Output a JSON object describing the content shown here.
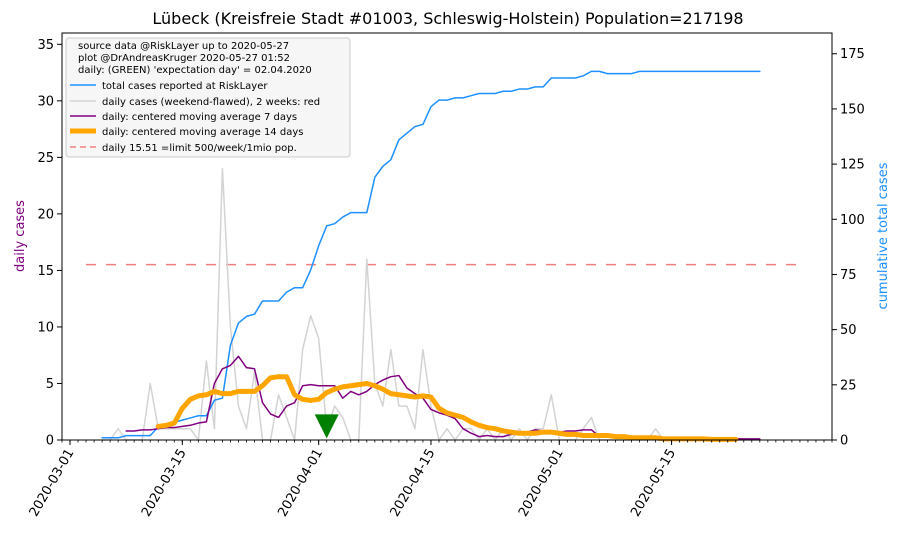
{
  "chart_data": {
    "type": "line",
    "title": "Lübeck (Kreisfreie Stadt #01003, Schleswig-Holstein) Population=217198",
    "ylabel_left": "daily cases",
    "ylabel_right": "cumulative total cases",
    "ylabel_left_color": "#800080",
    "ylabel_right_color": "#1E90FF",
    "ylim_left": [
      0,
      36
    ],
    "ylim_right": [
      0,
      184.4
    ],
    "yticks_left": [
      "0",
      "5",
      "10",
      "15",
      "20",
      "25",
      "30",
      "35"
    ],
    "yticks_right": [
      "0",
      "25",
      "50",
      "75",
      "100",
      "125",
      "150",
      "175"
    ],
    "xlim": [
      "2020-02-29",
      "2020-06-04"
    ],
    "xticks": [
      "2020-03-01",
      "2020-03-15",
      "2020-04-01",
      "2020-04-15",
      "2020-05-01",
      "2020-05-15"
    ],
    "legend_position": "top-left",
    "legend_header": [
      "source data @RiskLayer up to 2020-05-27",
      "plot @DrAndreasKruger 2020-05-27 01:52",
      "daily: (GREEN) 'expectation day' = 02.04.2020"
    ],
    "legend": [
      {
        "label": "total cases reported at RiskLayer",
        "color": "#1E90FF",
        "style": "line"
      },
      {
        "label": "daily cases (weekend-flawed), 2 weeks: red",
        "color": "#D3D3D3",
        "style": "line"
      },
      {
        "label": "daily: centered moving average 7 days",
        "color": "#800080",
        "style": "line"
      },
      {
        "label": "daily: centered moving average 14 days",
        "color": "#FFA500",
        "style": "thick"
      },
      {
        "label": "daily 15.51 =limit 500/week/1mio pop.",
        "color": "#F08080",
        "style": "dashed"
      }
    ],
    "limit_line": 15.51,
    "expectation_marker": {
      "date": "2020-04-02",
      "value": 1.2,
      "color": "#008000"
    },
    "series": [
      {
        "name": "total cases reported at RiskLayer",
        "axis": "right",
        "color": "#1E90FF",
        "x": [
          "2020-03-05",
          "2020-03-06",
          "2020-03-07",
          "2020-03-08",
          "2020-03-09",
          "2020-03-10",
          "2020-03-11",
          "2020-03-12",
          "2020-03-13",
          "2020-03-14",
          "2020-03-15",
          "2020-03-16",
          "2020-03-17",
          "2020-03-18",
          "2020-03-19",
          "2020-03-20",
          "2020-03-21",
          "2020-03-22",
          "2020-03-23",
          "2020-03-24",
          "2020-03-25",
          "2020-03-26",
          "2020-03-27",
          "2020-03-28",
          "2020-03-29",
          "2020-03-30",
          "2020-03-31",
          "2020-04-01",
          "2020-04-02",
          "2020-04-03",
          "2020-04-04",
          "2020-04-05",
          "2020-04-06",
          "2020-04-07",
          "2020-04-08",
          "2020-04-09",
          "2020-04-10",
          "2020-04-11",
          "2020-04-12",
          "2020-04-13",
          "2020-04-14",
          "2020-04-15",
          "2020-04-16",
          "2020-04-17",
          "2020-04-18",
          "2020-04-19",
          "2020-04-20",
          "2020-04-21",
          "2020-04-22",
          "2020-04-23",
          "2020-04-24",
          "2020-04-25",
          "2020-04-26",
          "2020-04-27",
          "2020-04-28",
          "2020-04-29",
          "2020-04-30",
          "2020-05-01",
          "2020-05-02",
          "2020-05-03",
          "2020-05-04",
          "2020-05-05",
          "2020-05-06",
          "2020-05-07",
          "2020-05-08",
          "2020-05-09",
          "2020-05-10",
          "2020-05-11",
          "2020-05-12",
          "2020-05-13",
          "2020-05-14",
          "2020-05-15",
          "2020-05-16",
          "2020-05-17",
          "2020-05-18",
          "2020-05-19",
          "2020-05-20",
          "2020-05-21",
          "2020-05-22",
          "2020-05-23",
          "2020-05-24",
          "2020-05-25",
          "2020-05-26"
        ],
        "values": [
          1,
          1,
          1,
          2,
          2,
          2,
          2,
          6,
          7,
          8,
          9,
          10,
          11,
          11,
          18,
          19,
          43,
          53,
          56,
          57,
          63,
          63,
          63,
          67,
          69,
          69,
          77,
          88,
          97,
          98,
          101,
          103,
          103,
          103,
          119,
          124,
          127,
          136,
          139,
          142,
          143,
          151,
          154,
          154,
          155,
          155,
          156,
          157,
          157,
          157,
          158,
          158,
          159,
          159,
          160,
          160,
          164,
          164,
          164,
          164,
          165,
          167,
          167,
          166,
          166,
          166,
          166,
          167,
          167,
          167,
          167,
          167,
          167,
          167,
          167,
          167,
          167,
          167,
          167,
          167,
          167,
          167,
          167
        ]
      },
      {
        "name": "daily cases (weekend-flawed), 2 weeks: red",
        "axis": "left",
        "color": "#D3D3D3",
        "x": [
          "2020-03-05",
          "2020-03-06",
          "2020-03-07",
          "2020-03-08",
          "2020-03-09",
          "2020-03-10",
          "2020-03-11",
          "2020-03-12",
          "2020-03-13",
          "2020-03-14",
          "2020-03-15",
          "2020-03-16",
          "2020-03-17",
          "2020-03-18",
          "2020-03-19",
          "2020-03-20",
          "2020-03-21",
          "2020-03-22",
          "2020-03-23",
          "2020-03-24",
          "2020-03-25",
          "2020-03-26",
          "2020-03-27",
          "2020-03-28",
          "2020-03-29",
          "2020-03-30",
          "2020-03-31",
          "2020-04-01",
          "2020-04-02",
          "2020-04-03",
          "2020-04-04",
          "2020-04-05",
          "2020-04-06",
          "2020-04-07",
          "2020-04-08",
          "2020-04-09",
          "2020-04-10",
          "2020-04-11",
          "2020-04-12",
          "2020-04-13",
          "2020-04-14",
          "2020-04-15",
          "2020-04-16",
          "2020-04-17",
          "2020-04-18",
          "2020-04-19",
          "2020-04-20",
          "2020-04-21",
          "2020-04-22",
          "2020-04-23",
          "2020-04-24",
          "2020-04-25",
          "2020-04-26",
          "2020-04-27",
          "2020-04-28",
          "2020-04-29",
          "2020-04-30",
          "2020-05-01",
          "2020-05-02",
          "2020-05-03",
          "2020-05-04",
          "2020-05-05",
          "2020-05-06",
          "2020-05-07",
          "2020-05-08",
          "2020-05-09",
          "2020-05-10",
          "2020-05-11",
          "2020-05-12",
          "2020-05-13",
          "2020-05-14",
          "2020-05-15",
          "2020-05-16",
          "2020-05-17",
          "2020-05-18",
          "2020-05-19",
          "2020-05-20",
          "2020-05-21",
          "2020-05-22",
          "2020-05-23",
          "2020-05-24",
          "2020-05-25",
          "2020-05-26"
        ],
        "values": [
          0,
          0,
          1,
          0,
          0,
          0,
          5,
          1,
          1,
          1,
          1,
          1,
          0,
          7,
          1,
          24,
          10,
          3,
          1,
          6,
          0,
          0,
          4,
          2,
          0,
          8,
          11,
          9,
          1,
          3,
          2,
          0,
          0,
          16,
          5,
          3,
          8,
          3,
          3,
          1,
          8,
          3,
          0,
          1,
          0,
          1,
          1,
          0,
          1,
          0,
          1,
          0,
          1,
          0,
          1,
          1,
          4,
          0,
          0,
          0,
          1,
          2,
          0,
          0,
          0,
          0,
          0,
          0,
          0,
          1,
          0,
          0,
          0,
          0,
          0,
          0,
          0,
          0,
          0,
          0,
          0,
          0,
          0
        ]
      },
      {
        "name": "daily: centered moving average 7 days",
        "axis": "left",
        "color": "#800080",
        "x": [
          "2020-03-08",
          "2020-03-09",
          "2020-03-10",
          "2020-03-11",
          "2020-03-12",
          "2020-03-13",
          "2020-03-14",
          "2020-03-15",
          "2020-03-16",
          "2020-03-17",
          "2020-03-18",
          "2020-03-19",
          "2020-03-20",
          "2020-03-21",
          "2020-03-22",
          "2020-03-23",
          "2020-03-24",
          "2020-03-25",
          "2020-03-26",
          "2020-03-27",
          "2020-03-28",
          "2020-03-29",
          "2020-03-30",
          "2020-03-31",
          "2020-04-01",
          "2020-04-02",
          "2020-04-03",
          "2020-04-04",
          "2020-04-05",
          "2020-04-06",
          "2020-04-07",
          "2020-04-08",
          "2020-04-09",
          "2020-04-10",
          "2020-04-11",
          "2020-04-12",
          "2020-04-13",
          "2020-04-14",
          "2020-04-15",
          "2020-04-16",
          "2020-04-17",
          "2020-04-18",
          "2020-04-19",
          "2020-04-20",
          "2020-04-21",
          "2020-04-22",
          "2020-04-23",
          "2020-04-24",
          "2020-04-25",
          "2020-04-26",
          "2020-04-27",
          "2020-04-28",
          "2020-04-29",
          "2020-04-30",
          "2020-05-01",
          "2020-05-02",
          "2020-05-03",
          "2020-05-04",
          "2020-05-05",
          "2020-05-06",
          "2020-05-07",
          "2020-05-08",
          "2020-05-09",
          "2020-05-10",
          "2020-05-11",
          "2020-05-12",
          "2020-05-13",
          "2020-05-14",
          "2020-05-15",
          "2020-05-16",
          "2020-05-17",
          "2020-05-18",
          "2020-05-19",
          "2020-05-20",
          "2020-05-21",
          "2020-05-22",
          "2020-05-23",
          "2020-05-24",
          "2020-05-25",
          "2020-05-26"
        ],
        "values": [
          0.8,
          0.8,
          0.9,
          0.9,
          1.0,
          1.1,
          1.1,
          1.2,
          1.3,
          1.5,
          1.6,
          5.0,
          6.3,
          6.6,
          7.4,
          6.4,
          6.3,
          3.3,
          2.3,
          2.0,
          3.0,
          3.3,
          4.8,
          4.9,
          4.8,
          4.8,
          4.8,
          3.7,
          4.3,
          4.0,
          4.3,
          4.9,
          5.3,
          5.6,
          5.7,
          4.6,
          4.1,
          3.7,
          2.7,
          2.4,
          2.2,
          1.9,
          1.0,
          0.6,
          0.3,
          0.4,
          0.3,
          0.3,
          0.5,
          0.5,
          0.7,
          0.9,
          0.8,
          0.8,
          0.7,
          0.8,
          0.8,
          0.9,
          0.9,
          0.3,
          0.3,
          0.3,
          0.3,
          0.2,
          0.2,
          0.2,
          0.1,
          0.1,
          0.1,
          0.1,
          0.1,
          0.1,
          0.1,
          0.1,
          0.1,
          0.1,
          0.1,
          0.1,
          0.1,
          0.1
        ]
      },
      {
        "name": "daily: centered moving average 14 days",
        "axis": "left",
        "color": "#FFA500",
        "x": [
          "2020-03-12",
          "2020-03-13",
          "2020-03-14",
          "2020-03-15",
          "2020-03-16",
          "2020-03-17",
          "2020-03-18",
          "2020-03-19",
          "2020-03-20",
          "2020-03-21",
          "2020-03-22",
          "2020-03-23",
          "2020-03-24",
          "2020-03-25",
          "2020-03-26",
          "2020-03-27",
          "2020-03-28",
          "2020-03-29",
          "2020-03-30",
          "2020-03-31",
          "2020-04-01",
          "2020-04-02",
          "2020-04-03",
          "2020-04-04",
          "2020-04-05",
          "2020-04-06",
          "2020-04-07",
          "2020-04-08",
          "2020-04-09",
          "2020-04-10",
          "2020-04-11",
          "2020-04-12",
          "2020-04-13",
          "2020-04-14",
          "2020-04-15",
          "2020-04-16",
          "2020-04-17",
          "2020-04-18",
          "2020-04-19",
          "2020-04-20",
          "2020-04-21",
          "2020-04-22",
          "2020-04-23",
          "2020-04-24",
          "2020-04-25",
          "2020-04-26",
          "2020-04-27",
          "2020-04-28",
          "2020-04-29",
          "2020-04-30",
          "2020-05-01",
          "2020-05-02",
          "2020-05-03",
          "2020-05-04",
          "2020-05-05",
          "2020-05-06",
          "2020-05-07",
          "2020-05-08",
          "2020-05-09",
          "2020-05-10",
          "2020-05-11",
          "2020-05-12",
          "2020-05-13",
          "2020-05-14",
          "2020-05-15",
          "2020-05-16",
          "2020-05-17",
          "2020-05-18",
          "2020-05-19",
          "2020-05-20",
          "2020-05-21",
          "2020-05-22",
          "2020-05-23"
        ],
        "values": [
          1.2,
          1.3,
          1.5,
          2.8,
          3.6,
          3.9,
          4.0,
          4.3,
          4.1,
          4.1,
          4.3,
          4.3,
          4.3,
          4.8,
          5.5,
          5.6,
          5.6,
          4.0,
          3.6,
          3.5,
          3.6,
          4.2,
          4.5,
          4.7,
          4.8,
          4.9,
          5.0,
          4.8,
          4.5,
          4.1,
          4.0,
          3.9,
          3.8,
          3.9,
          3.8,
          2.8,
          2.4,
          2.2,
          2.0,
          1.6,
          1.3,
          1.1,
          1.0,
          0.8,
          0.7,
          0.6,
          0.6,
          0.6,
          0.7,
          0.7,
          0.6,
          0.5,
          0.5,
          0.4,
          0.4,
          0.4,
          0.4,
          0.3,
          0.3,
          0.2,
          0.2,
          0.2,
          0.2,
          0.1,
          0.1,
          0.1,
          0.1,
          0.1,
          0.1,
          0.05,
          0.05,
          0.05,
          0.05
        ]
      }
    ]
  }
}
